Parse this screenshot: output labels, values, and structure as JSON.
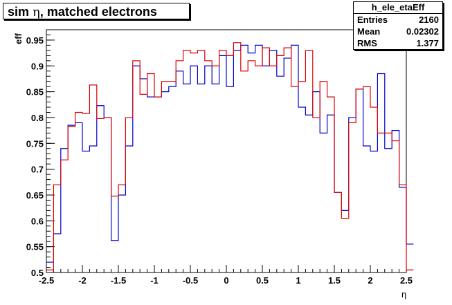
{
  "title_prefix": "sim ",
  "title_symbol": "η",
  "title_suffix": ",  matched electrons",
  "stats": {
    "name": "h_ele_etaEff",
    "rows": [
      {
        "label": "Entries",
        "value": "2160"
      },
      {
        "label": "Mean",
        "value": "0.02302"
      },
      {
        "label": "RMS",
        "value": "1.377"
      }
    ]
  },
  "colors": {
    "blue": "#0000cc",
    "red": "#dd0000"
  },
  "chart_data": {
    "type": "line",
    "xlabel": "η",
    "ylabel": "eff",
    "xlim": [
      -2.5,
      2.5
    ],
    "ylim": [
      0.5,
      0.97
    ],
    "x_ticks": [
      -2.5,
      -2,
      -1.5,
      -1,
      -0.5,
      0,
      0.5,
      1,
      1.5,
      2,
      2.5
    ],
    "x_tick_labels": [
      "-2.5",
      "-2",
      "-1.5",
      "-1",
      "-0.5",
      "0",
      "0.5",
      "1",
      "1.5",
      "2",
      "2.5"
    ],
    "y_ticks": [
      0.5,
      0.55,
      0.6,
      0.65,
      0.7,
      0.75,
      0.8,
      0.85,
      0.9,
      0.95
    ],
    "y_tick_labels": [
      "0.5",
      "0.55",
      "0.6",
      "0.65",
      "0.7",
      "0.75",
      "0.8",
      "0.85",
      "0.9",
      "0.95"
    ],
    "bin_edges_start": -2.5,
    "bin_width": 0.1,
    "series": [
      {
        "color": "blue",
        "values": [
          0.52,
          0.575,
          0.74,
          0.785,
          0.79,
          0.735,
          0.745,
          0.823,
          0.8,
          0.562,
          0.65,
          0.745,
          0.9,
          0.875,
          0.84,
          0.84,
          0.85,
          0.86,
          0.89,
          0.865,
          0.9,
          0.865,
          0.9,
          0.865,
          0.92,
          0.86,
          0.93,
          0.94,
          0.925,
          0.94,
          0.9,
          0.93,
          0.88,
          0.915,
          0.94,
          0.82,
          0.805,
          0.85,
          0.77,
          0.805,
          0.655,
          0.62,
          0.8,
          0.855,
          0.745,
          0.735,
          0.885,
          0.74,
          0.775,
          0.665,
          0.555
        ]
      },
      {
        "color": "red",
        "values": [
          0.505,
          0.67,
          0.718,
          0.783,
          0.81,
          0.808,
          0.863,
          0.798,
          0.8,
          0.648,
          0.67,
          0.8,
          0.91,
          0.845,
          0.885,
          0.84,
          0.87,
          0.87,
          0.91,
          0.93,
          0.925,
          0.93,
          0.91,
          0.9,
          0.93,
          0.92,
          0.945,
          0.89,
          0.91,
          0.9,
          0.935,
          0.9,
          0.92,
          0.935,
          0.86,
          0.87,
          0.93,
          0.8,
          0.87,
          0.84,
          0.655,
          0.605,
          0.79,
          0.855,
          0.86,
          0.82,
          0.77,
          0.77,
          0.755,
          0.67,
          0.505
        ]
      }
    ]
  }
}
